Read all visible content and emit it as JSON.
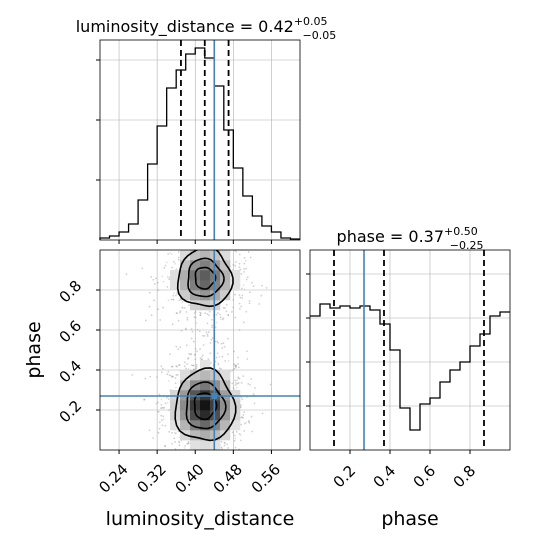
{
  "colors": {
    "truth": "#4682b4",
    "hist": "#000000",
    "grid": "#b0b0b0",
    "scatter": "#9a9a9a"
  },
  "chart_data": [
    {
      "panel": "luminosity_distance-marginal",
      "type": "histogram",
      "parameter": "luminosity_distance",
      "title_main": "luminosity_distance = 0.42",
      "title_sup": "+0.05",
      "title_sub": "−0.05",
      "xlim": [
        0.2,
        0.62
      ],
      "ylim": [
        0,
        1
      ],
      "bin_edges": [
        0.2,
        0.22,
        0.24,
        0.26,
        0.28,
        0.3,
        0.32,
        0.34,
        0.36,
        0.38,
        0.4,
        0.42,
        0.44,
        0.46,
        0.48,
        0.5,
        0.52,
        0.54,
        0.56,
        0.58,
        0.6,
        0.62
      ],
      "counts": [
        0.01,
        0.02,
        0.04,
        0.08,
        0.2,
        0.38,
        0.57,
        0.76,
        0.85,
        0.93,
        0.96,
        0.91,
        0.77,
        0.55,
        0.36,
        0.22,
        0.12,
        0.07,
        0.04,
        0.01,
        0.005
      ],
      "quantiles": [
        0.37,
        0.42,
        0.47
      ],
      "truth": 0.44,
      "grid": true
    },
    {
      "panel": "phase-marginal",
      "type": "histogram",
      "parameter": "phase",
      "title_main": "phase = 0.37",
      "title_sup": "+0.50",
      "title_sub": "−0.25",
      "xlim": [
        0.0,
        1.0
      ],
      "ylim": [
        0,
        1
      ],
      "bin_edges": [
        0.0,
        0.05,
        0.1,
        0.15,
        0.2,
        0.25,
        0.3,
        0.35,
        0.4,
        0.45,
        0.5,
        0.55,
        0.6,
        0.65,
        0.7,
        0.75,
        0.8,
        0.85,
        0.9,
        0.95,
        1.0
      ],
      "counts": [
        0.67,
        0.73,
        0.71,
        0.72,
        0.71,
        0.72,
        0.7,
        0.63,
        0.5,
        0.21,
        0.1,
        0.23,
        0.26,
        0.34,
        0.4,
        0.44,
        0.52,
        0.58,
        0.67,
        0.69
      ],
      "quantiles": [
        0.12,
        0.37,
        0.87
      ],
      "truth": 0.27,
      "grid": true
    },
    {
      "panel": "joint-2d",
      "type": "heatmap",
      "x_parameter": "luminosity_distance",
      "y_parameter": "phase",
      "xlabel": "luminosity_distance",
      "ylabel": "phase",
      "xlim": [
        0.2,
        0.62
      ],
      "ylim": [
        0.0,
        1.0
      ],
      "xticks": [
        0.24,
        0.32,
        0.4,
        0.48,
        0.56
      ],
      "xtick_labels": [
        "0.24",
        "0.32",
        "0.40",
        "0.48",
        "0.56"
      ],
      "yticks": [
        0.2,
        0.4,
        0.6,
        0.8
      ],
      "ytick_labels": [
        "0.2",
        "0.4",
        "0.6",
        "0.8"
      ],
      "truth": {
        "x": 0.44,
        "y": 0.27
      },
      "density_modes": [
        {
          "x": 0.42,
          "y": 0.22,
          "sx": 0.035,
          "sy": 0.1,
          "weight": 1.0
        },
        {
          "x": 0.42,
          "y": 0.86,
          "sx": 0.035,
          "sy": 0.09,
          "weight": 0.7
        }
      ],
      "contour_levels": [
        0.3,
        0.6,
        0.85
      ],
      "grid": true
    },
    {
      "panel": "phase-x-axis",
      "xlabel": "phase",
      "xticks": [
        0.2,
        0.4,
        0.6,
        0.8
      ],
      "xtick_labels": [
        "0.2",
        "0.4",
        "0.6",
        "0.8"
      ]
    }
  ]
}
